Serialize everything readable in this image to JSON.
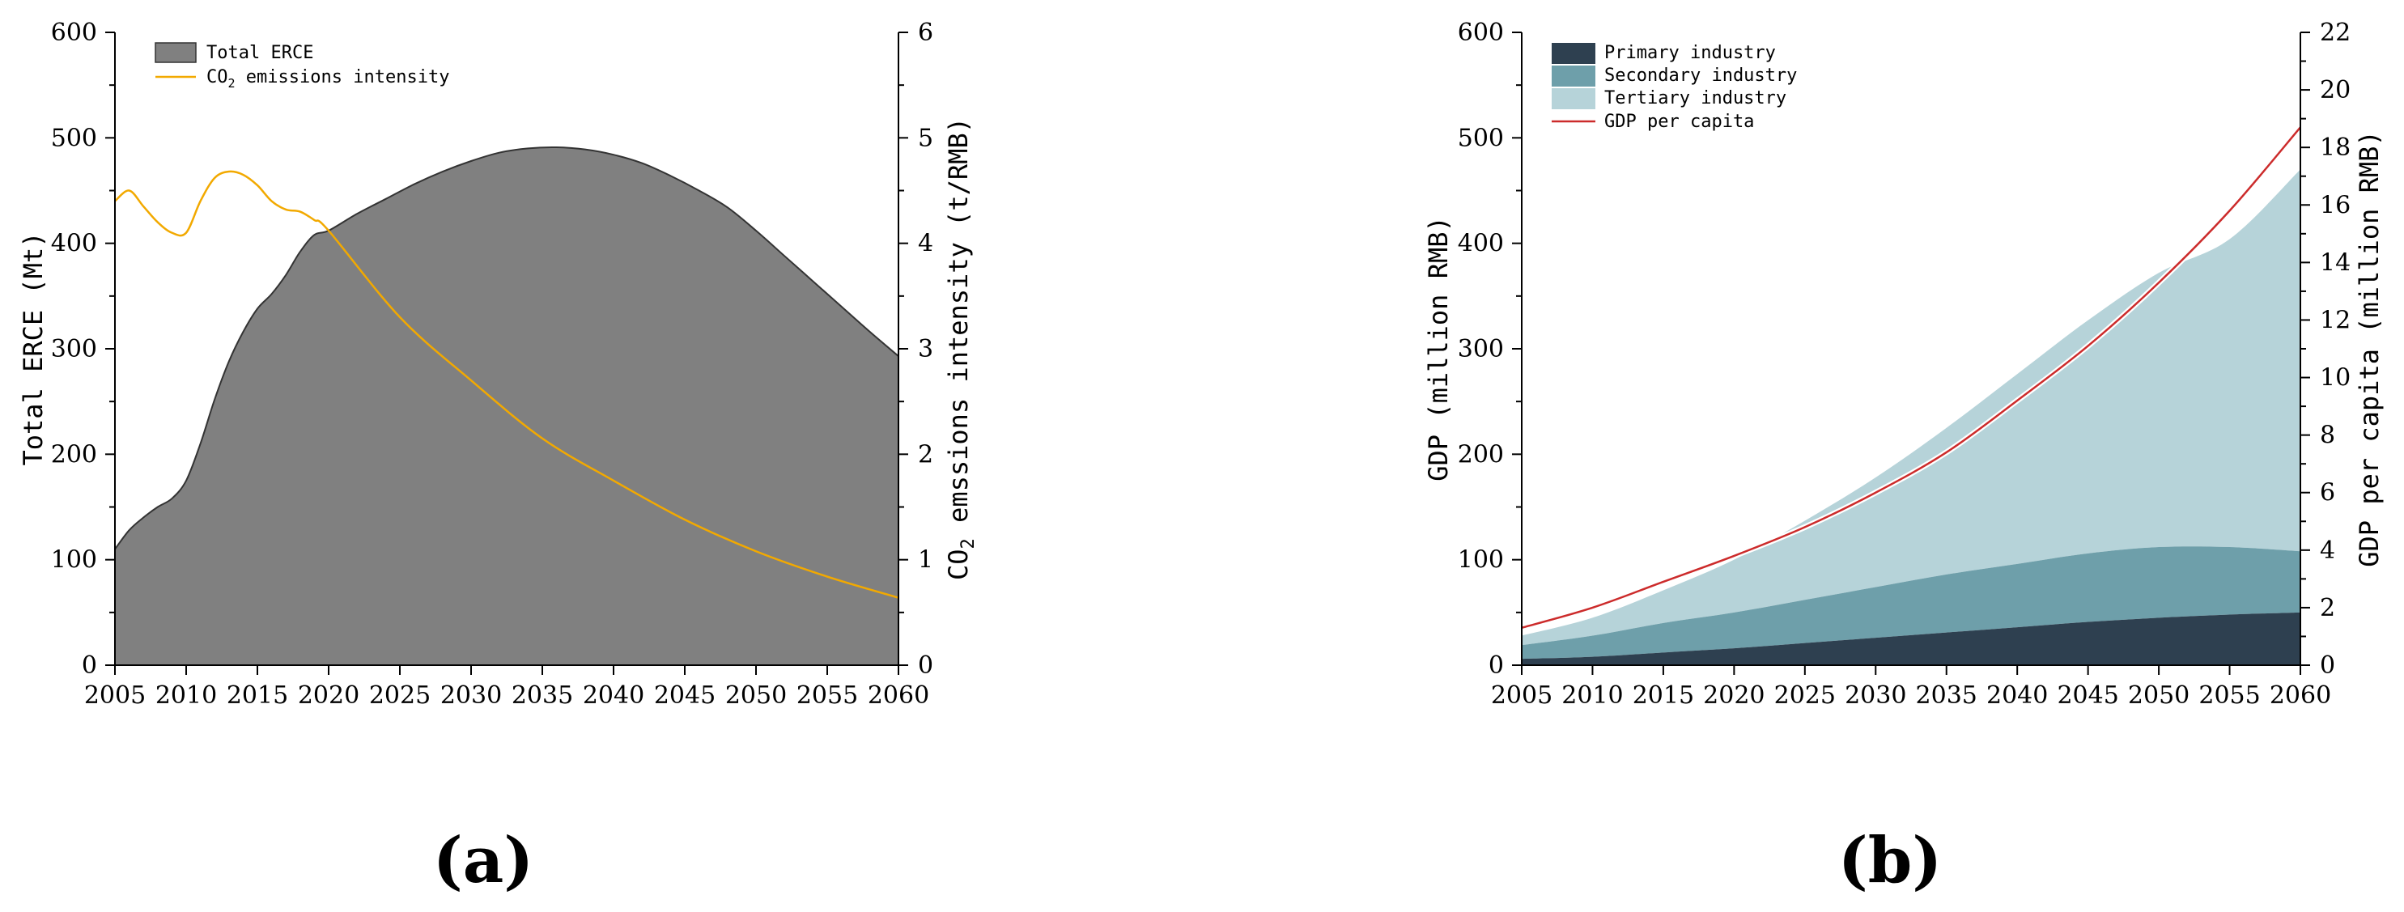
{
  "chart_data": [
    {
      "id": "a",
      "type": "area",
      "panel_label": "(a)",
      "xlabel": "",
      "ylabel": "Total ERCE (Mt)",
      "y2label": "CO2 emssions intensity (t/RMB)",
      "y2label_parts": {
        "pre": "CO",
        "sub": "2",
        "post": " emssions intensity (t/RMB)"
      },
      "xlim": [
        2005,
        2060
      ],
      "ylim": [
        0,
        600
      ],
      "y2lim": [
        0,
        6
      ],
      "xticks": [
        2005,
        2010,
        2015,
        2020,
        2025,
        2030,
        2035,
        2040,
        2045,
        2050,
        2055,
        2060
      ],
      "yticks": [
        0,
        100,
        200,
        300,
        400,
        500,
        600
      ],
      "y2ticks": [
        0,
        1,
        2,
        3,
        4,
        5,
        6
      ],
      "legend": {
        "area": "Total ERCE",
        "line_pre": "CO",
        "line_sub": "2",
        "line_post": " emissions intensity"
      },
      "series": [
        {
          "name": "Total ERCE",
          "kind": "area",
          "axis": "left",
          "color": "#808080",
          "x": [
            2005,
            2006,
            2007,
            2008,
            2009,
            2010,
            2011,
            2012,
            2013,
            2014,
            2015,
            2016,
            2017,
            2018,
            2019,
            2020,
            2022,
            2024,
            2026,
            2028,
            2030,
            2032,
            2034,
            2036,
            2038,
            2040,
            2042,
            2044,
            2046,
            2048,
            2050,
            2052,
            2054,
            2056,
            2058,
            2060
          ],
          "values": [
            110,
            128,
            140,
            150,
            158,
            175,
            210,
            252,
            288,
            316,
            338,
            352,
            370,
            392,
            408,
            412,
            428,
            442,
            456,
            468,
            478,
            486,
            490,
            491,
            489,
            484,
            476,
            464,
            450,
            434,
            412,
            388,
            364,
            340,
            316,
            293
          ]
        },
        {
          "name": "CO2 emissions intensity",
          "kind": "line",
          "axis": "right",
          "color": "#F2A900",
          "x": [
            2005,
            2006,
            2007,
            2008,
            2009,
            2010,
            2011,
            2012,
            2013,
            2014,
            2015,
            2016,
            2017,
            2018,
            2019,
            2020,
            2025,
            2030,
            2035,
            2040,
            2045,
            2050,
            2055,
            2060
          ],
          "values": [
            4.4,
            4.5,
            4.35,
            4.2,
            4.1,
            4.1,
            4.4,
            4.62,
            4.68,
            4.65,
            4.55,
            4.4,
            4.32,
            4.3,
            4.22,
            4.12,
            3.3,
            2.7,
            2.15,
            1.75,
            1.38,
            1.08,
            0.84,
            0.64
          ]
        }
      ]
    },
    {
      "id": "b",
      "type": "area",
      "panel_label": "(b)",
      "xlabel": "",
      "ylabel": "GDP (million RMB)",
      "y2label": "GDP per capita (million RMB)",
      "xlim": [
        2005,
        2060
      ],
      "ylim": [
        0,
        600
      ],
      "y2lim": [
        0,
        22
      ],
      "xticks": [
        2005,
        2010,
        2015,
        2020,
        2025,
        2030,
        2035,
        2040,
        2045,
        2050,
        2055,
        2060
      ],
      "yticks": [
        0,
        100,
        200,
        300,
        400,
        500,
        600
      ],
      "y2ticks": [
        0,
        2,
        4,
        6,
        8,
        10,
        12,
        14,
        16,
        18,
        20,
        22
      ],
      "legend": [
        "Primary industry",
        "Secondary industry",
        "Tertiary industry",
        "GDP per capita"
      ],
      "stacked": true,
      "x": [
        2005,
        2010,
        2015,
        2020,
        2025,
        2030,
        2035,
        2040,
        2045,
        2050,
        2055,
        2060
      ],
      "series": [
        {
          "name": "Primary industry",
          "kind": "area",
          "axis": "left",
          "color": "#2E4050",
          "values": [
            6,
            8,
            12,
            16,
            21,
            26,
            31,
            36,
            41,
            45,
            48,
            50
          ]
        },
        {
          "name": "Secondary industry",
          "kind": "area",
          "axis": "left",
          "color": "#6E9FAA",
          "values": [
            13,
            20,
            28,
            34,
            41,
            48,
            55,
            60,
            65,
            67,
            64,
            58
          ]
        },
        {
          "name": "Tertiary industry",
          "kind": "area",
          "axis": "left",
          "color": "#B6D3D9",
          "values": [
            9,
            17,
            31,
            50,
            75,
            104,
            139,
            180,
            221,
            260,
            292,
            362
          ]
        },
        {
          "name": "GDP per capita",
          "kind": "line",
          "axis": "right",
          "color": "#CC2B2B",
          "values": [
            1.3,
            2.0,
            2.9,
            3.8,
            4.8,
            6.0,
            7.4,
            9.2,
            11.1,
            13.3,
            15.8,
            18.7
          ]
        }
      ]
    }
  ]
}
